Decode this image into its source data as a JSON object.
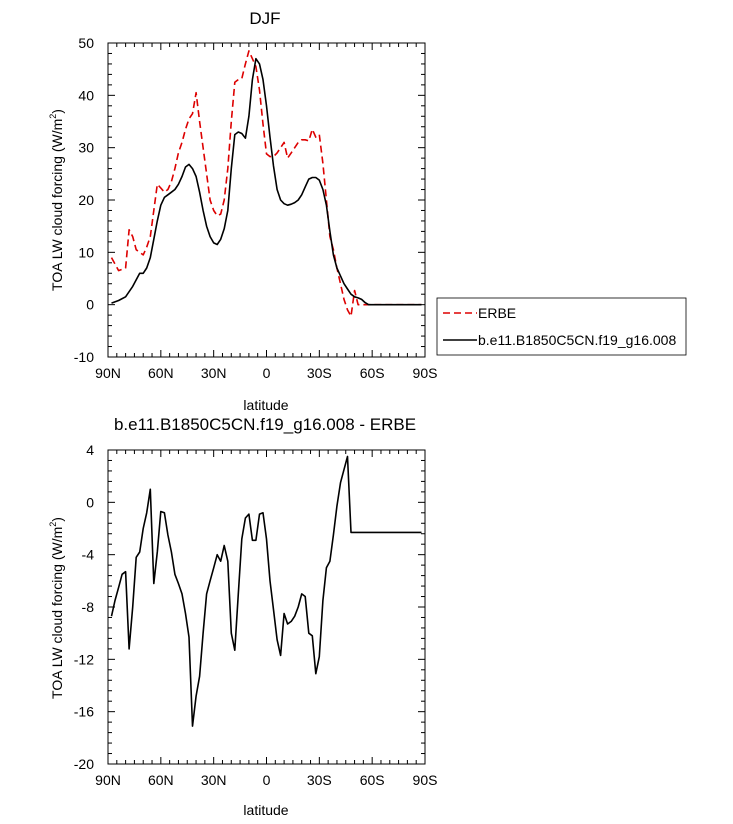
{
  "chart_data": [
    {
      "type": "line",
      "title": "DJF",
      "xlabel": "latitude",
      "ylabel_main": "TOA LW cloud forcing (W/m",
      "ylabel_sup": "2",
      "ylabel_close": ")",
      "xlim": [
        90,
        -90
      ],
      "ylim": [
        -10,
        50
      ],
      "x_ticks": [
        90,
        60,
        30,
        0,
        -30,
        -60,
        -90
      ],
      "x_tick_labels": [
        "90N",
        "60N",
        "30N",
        "0",
        "30S",
        "60S",
        "90S"
      ],
      "y_ticks": [
        -10,
        0,
        10,
        20,
        30,
        40,
        50
      ],
      "y_tick_labels": [
        "-10",
        "0",
        "10",
        "20",
        "30",
        "40",
        "50"
      ],
      "legend": {
        "placement": "right",
        "entries": [
          {
            "label": "ERBE",
            "color": "#dd0000",
            "dashed": true
          },
          {
            "label": "b.e11.B1850C5CN.f19_g16.008",
            "color": "#000000",
            "dashed": false
          }
        ]
      },
      "series": [
        {
          "name": "ERBE",
          "color": "#dd0000",
          "dashed": true,
          "x": [
            88,
            84,
            80,
            78,
            76,
            74,
            72,
            70,
            68,
            66,
            64,
            62,
            60,
            58,
            56,
            54,
            52,
            50,
            48,
            46,
            44,
            42,
            40,
            38,
            36,
            34,
            32,
            30,
            28,
            26,
            24,
            22,
            20,
            18,
            16,
            14,
            12,
            10,
            8,
            6,
            4,
            2,
            0,
            -2,
            -4,
            -6,
            -8,
            -10,
            -12,
            -14,
            -16,
            -18,
            -20,
            -22,
            -24,
            -26,
            -28,
            -30,
            -32,
            -34,
            -36,
            -38,
            -40,
            -42,
            -44,
            -46,
            -48,
            -50,
            -52,
            -54,
            -56,
            -58,
            -60,
            -62,
            -64,
            -66,
            -68,
            -70,
            -72,
            -74,
            -76,
            -78,
            -80,
            -82,
            -84,
            -86,
            -88
          ],
          "y": [
            9.0,
            6.5,
            7.0,
            14.3,
            13.0,
            10.5,
            10.0,
            9.5,
            11.0,
            13.0,
            18.0,
            23.0,
            22.3,
            21.5,
            22.0,
            23.5,
            26.0,
            29.0,
            31.0,
            33.5,
            35.5,
            36.5,
            40.5,
            35.0,
            30.0,
            25.0,
            20.0,
            18.0,
            17.0,
            17.3,
            20.0,
            26.0,
            35.0,
            42.5,
            43.0,
            43.2,
            46.0,
            48.5,
            47.0,
            45.5,
            41.0,
            34.5,
            28.8,
            28.3,
            28.3,
            29.0,
            30.0,
            31.0,
            28.0,
            29.0,
            30.0,
            31.0,
            31.5,
            31.5,
            31.3,
            33.5,
            32.0,
            32.5,
            27.0,
            20.0,
            13.0,
            10.5,
            7.0,
            4.0,
            1.0,
            -1.0,
            -2.2,
            2.7,
            0.0,
            0.0,
            0.0,
            0.0,
            0.0,
            0.0,
            0.0,
            0.0,
            0.0,
            0.0,
            0.0,
            0.0,
            0.0,
            0.0,
            0.0,
            0.0,
            0.0,
            0.0,
            0.0
          ]
        },
        {
          "name": "b.e11.B1850C5CN.f19_g16.008",
          "color": "#000000",
          "dashed": false,
          "x": [
            88,
            84,
            80,
            76,
            72,
            70,
            68,
            66,
            64,
            62,
            60,
            58,
            56,
            54,
            52,
            50,
            48,
            46,
            44,
            42,
            40,
            38,
            36,
            34,
            32,
            30,
            28,
            26,
            24,
            22,
            20,
            18,
            16,
            14,
            12,
            10,
            8,
            6,
            4,
            2,
            0,
            -2,
            -4,
            -6,
            -8,
            -10,
            -12,
            -14,
            -16,
            -18,
            -20,
            -22,
            -24,
            -26,
            -28,
            -30,
            -32,
            -34,
            -36,
            -38,
            -40,
            -42,
            -44,
            -46,
            -48,
            -50,
            -52,
            -54,
            -56,
            -58,
            -60,
            -62,
            -64,
            -66,
            -68,
            -70,
            -72,
            -74,
            -76,
            -78,
            -80,
            -82,
            -84,
            -86,
            -88
          ],
          "y": [
            0.3,
            0.8,
            1.5,
            3.5,
            6.0,
            6.0,
            7.0,
            9.0,
            12.5,
            16.0,
            19.0,
            20.5,
            21.0,
            21.5,
            22.0,
            23.0,
            24.5,
            26.3,
            26.8,
            26.0,
            24.5,
            21.5,
            18.0,
            15.0,
            13.0,
            11.8,
            11.5,
            12.5,
            14.5,
            18.0,
            26.0,
            32.5,
            33.0,
            32.7,
            31.8,
            36.0,
            43.0,
            47.0,
            46.0,
            43.0,
            38.0,
            32.0,
            26.5,
            22.0,
            20.0,
            19.3,
            19.0,
            19.2,
            19.5,
            20.0,
            21.0,
            22.5,
            24.0,
            24.3,
            24.3,
            23.8,
            22.0,
            19.0,
            14.0,
            9.5,
            7.0,
            5.5,
            4.0,
            3.0,
            2.0,
            1.5,
            1.3,
            1.0,
            0.4,
            0.0,
            0.0,
            0.0,
            0.0,
            0.0,
            0.0,
            0.0,
            0.0,
            0.0,
            0.0,
            0.0,
            0.0,
            0.0,
            0.0,
            0.0,
            0.0
          ]
        }
      ]
    },
    {
      "type": "line",
      "title": "b.e11.B1850C5CN.f19_g16.008 - ERBE",
      "xlabel": "latitude",
      "ylabel_main": "TOA LW cloud forcing (W/m",
      "ylabel_sup": "2",
      "ylabel_close": ")",
      "xlim": [
        90,
        -90
      ],
      "ylim": [
        -20,
        4
      ],
      "x_ticks": [
        90,
        60,
        30,
        0,
        -30,
        -60,
        -90
      ],
      "x_tick_labels": [
        "90N",
        "60N",
        "30N",
        "0",
        "30S",
        "60S",
        "90S"
      ],
      "y_ticks": [
        -20,
        -16,
        -12,
        -8,
        -4,
        0,
        4
      ],
      "y_tick_labels": [
        "-20",
        "-16",
        "-12",
        "-8",
        "-4",
        "0",
        "4"
      ],
      "series": [
        {
          "color": "#000000",
          "dashed": false,
          "x": [
            88,
            86,
            84,
            82,
            80,
            78,
            76,
            74,
            72,
            70,
            68,
            66,
            64,
            62,
            60,
            58,
            56,
            54,
            52,
            50,
            48,
            46,
            44,
            42,
            40,
            38,
            36,
            34,
            32,
            30,
            28,
            26,
            24,
            22,
            20,
            18,
            16,
            14,
            12,
            10,
            8,
            6,
            4,
            2,
            0,
            -2,
            -4,
            -6,
            -8,
            -10,
            -12,
            -14,
            -16,
            -18,
            -20,
            -22,
            -24,
            -26,
            -28,
            -30,
            -32,
            -34,
            -36,
            -38,
            -40,
            -42,
            -44,
            -46,
            -48,
            -50,
            -52,
            -54,
            -56,
            -58,
            -60,
            -62,
            -64,
            -66,
            -68,
            -70,
            -72,
            -74,
            -76,
            -78,
            -80,
            -82,
            -84,
            -86,
            -88
          ],
          "y": [
            -8.7,
            -7.5,
            -6.5,
            -5.5,
            -5.3,
            -11.2,
            -8.0,
            -4.2,
            -3.8,
            -2.0,
            -0.8,
            1.0,
            -6.2,
            -3.8,
            -0.7,
            -0.8,
            -2.5,
            -3.8,
            -5.5,
            -6.2,
            -7.0,
            -8.5,
            -10.3,
            -17.1,
            -14.8,
            -13.3,
            -10.0,
            -7.0,
            -6.0,
            -5.0,
            -4.0,
            -4.5,
            -3.3,
            -4.5,
            -10.0,
            -11.3,
            -7.0,
            -2.8,
            -1.2,
            -0.9,
            -2.9,
            -2.9,
            -0.9,
            -0.8,
            -2.8,
            -6.0,
            -8.2,
            -10.5,
            -11.7,
            -8.5,
            -9.3,
            -9.1,
            -8.7,
            -8.0,
            -7.0,
            -7.2,
            -10.0,
            -10.2,
            -13.1,
            -11.8,
            -7.5,
            -5.0,
            -4.5,
            -2.5,
            -0.3,
            1.5,
            2.5,
            3.5,
            -2.3,
            -2.3,
            -2.3,
            -2.3,
            -2.3,
            -2.3,
            -2.3,
            -2.3,
            -2.3,
            -2.3,
            -2.3,
            -2.3,
            -2.3,
            -2.3,
            -2.3,
            -2.3,
            -2.3,
            -2.3,
            -2.3,
            -2.3,
            -2.3
          ]
        }
      ]
    }
  ]
}
